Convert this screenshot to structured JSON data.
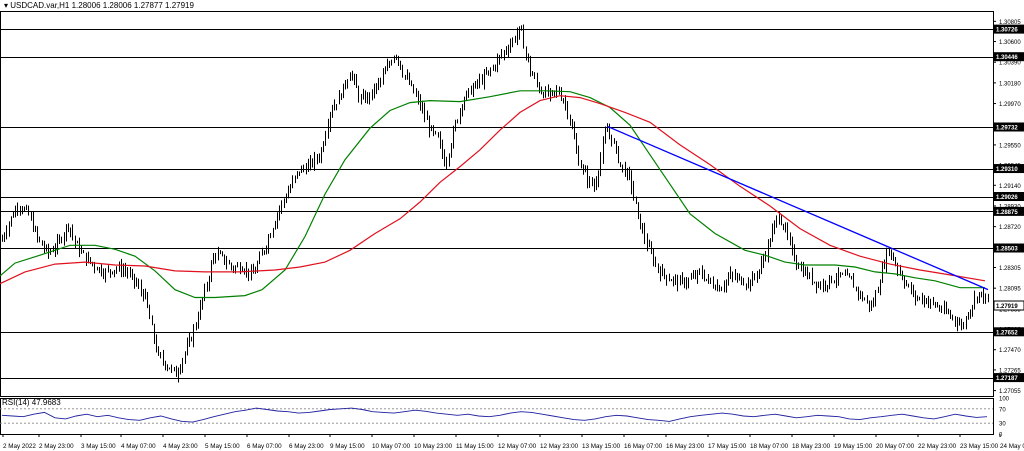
{
  "chart_data": {
    "type": "candlestick",
    "symbol": "USDCAD.var,H1",
    "header_values": [
      "1.28006",
      "1.28006",
      "1.27877",
      "1.27919"
    ],
    "price_axis": {
      "ylim": [
        1.27,
        1.3091
      ],
      "ticks": [
        "1.30805",
        "1.30600",
        "1.30390",
        "1.30180",
        "1.29970",
        "1.29755",
        "1.29550",
        "1.29345",
        "1.29140",
        "1.28930",
        "1.28720",
        "1.28510",
        "1.28305",
        "1.28095",
        "1.27885",
        "1.27680",
        "1.27470",
        "1.27265",
        "1.27055"
      ]
    },
    "levels": [
      1.30726,
      1.30446,
      1.29732,
      1.2931,
      1.29026,
      1.28875,
      1.28503,
      1.27919,
      1.27652,
      1.27187
    ],
    "level_labels": [
      "1.30726",
      "1.30446",
      "1.29732",
      "1.29310",
      "1.29026",
      "1.28875",
      "1.28503",
      "1.27919",
      "1.27652",
      "1.27187"
    ],
    "current_price": 1.27919,
    "current_label": "1.27919",
    "trendline": {
      "from": [
        "13 May 23:00",
        1.2974
      ],
      "to": [
        "24 May 07:00",
        1.2808
      ],
      "color": "#0000ff"
    },
    "time_labels": [
      "2 May 2022",
      "2 May 23:00",
      "3 May 15:00",
      "4 May 07:00",
      "4 May 23:00",
      "5 May 15:00",
      "6 May 07:00",
      "6 May 23:00",
      "9 May 15:00",
      "10 May 07:00",
      "10 May 23:00",
      "11 May 15:00",
      "12 May 07:00",
      "12 May 23:00",
      "13 May 15:00",
      "16 May 07:00",
      "16 May 23:00",
      "17 May 15:00",
      "18 May 07:00",
      "18 May 23:00",
      "19 May 15:00",
      "20 May 07:00",
      "22 May 23:00",
      "23 May 15:00",
      "24 May 07:00"
    ],
    "series": [
      {
        "name": "MA fast",
        "color": "#008000",
        "points": [
          [
            0,
            1.2822
          ],
          [
            15,
            1.2835
          ],
          [
            40,
            1.2843
          ],
          [
            70,
            1.2853
          ],
          [
            95,
            1.2853
          ],
          [
            115,
            1.2849
          ],
          [
            135,
            1.2842
          ],
          [
            155,
            1.2827
          ],
          [
            175,
            1.2808
          ],
          [
            195,
            1.28
          ],
          [
            215,
            1.28
          ],
          [
            245,
            1.2802
          ],
          [
            262,
            1.2808
          ],
          [
            285,
            1.2828
          ],
          [
            305,
            1.2862
          ],
          [
            325,
            1.2905
          ],
          [
            345,
            1.294
          ],
          [
            370,
            1.2972
          ],
          [
            390,
            1.299
          ],
          [
            410,
            1.2998
          ],
          [
            430,
            1.3
          ],
          [
            460,
            1.2999
          ],
          [
            490,
            1.3004
          ],
          [
            520,
            1.301
          ],
          [
            545,
            1.301
          ],
          [
            570,
            1.3009
          ],
          [
            590,
            1.3003
          ],
          [
            610,
            1.2993
          ],
          [
            630,
            1.2975
          ],
          [
            650,
            1.2945
          ],
          [
            670,
            1.2915
          ],
          [
            690,
            1.2885
          ],
          [
            715,
            1.2865
          ],
          [
            745,
            1.2848
          ],
          [
            765,
            1.2843
          ],
          [
            785,
            1.2836
          ],
          [
            805,
            1.2833
          ],
          [
            835,
            1.2833
          ],
          [
            855,
            1.2831
          ],
          [
            875,
            1.2826
          ],
          [
            895,
            1.2824
          ],
          [
            915,
            1.282
          ],
          [
            935,
            1.2817
          ],
          [
            960,
            1.281
          ],
          [
            985,
            1.281
          ]
        ]
      },
      {
        "name": "MA slow",
        "color": "#e0101e",
        "points": [
          [
            0,
            1.2814
          ],
          [
            25,
            1.2826
          ],
          [
            55,
            1.2834
          ],
          [
            85,
            1.2836
          ],
          [
            115,
            1.2833
          ],
          [
            145,
            1.2832
          ],
          [
            175,
            1.2827
          ],
          [
            205,
            1.2826
          ],
          [
            240,
            1.2826
          ],
          [
            275,
            1.2828
          ],
          [
            300,
            1.2831
          ],
          [
            325,
            1.2836
          ],
          [
            350,
            1.2848
          ],
          [
            375,
            1.2865
          ],
          [
            400,
            1.288
          ],
          [
            420,
            1.2897
          ],
          [
            440,
            1.2917
          ],
          [
            460,
            1.2933
          ],
          [
            480,
            1.295
          ],
          [
            500,
            1.297
          ],
          [
            520,
            1.2988
          ],
          [
            540,
            1.3
          ],
          [
            560,
            1.3005
          ],
          [
            580,
            1.3003
          ],
          [
            600,
            1.2997
          ],
          [
            625,
            1.2988
          ],
          [
            650,
            1.2978
          ],
          [
            680,
            1.2955
          ],
          [
            710,
            1.2935
          ],
          [
            740,
            1.2913
          ],
          [
            770,
            1.2893
          ],
          [
            800,
            1.287
          ],
          [
            830,
            1.2853
          ],
          [
            860,
            1.2842
          ],
          [
            890,
            1.2834
          ],
          [
            920,
            1.2828
          ],
          [
            950,
            1.2823
          ],
          [
            985,
            1.2817
          ]
        ]
      }
    ],
    "price_path": [
      [
        0,
        1.2855
      ],
      [
        8,
        1.2875
      ],
      [
        18,
        1.2895
      ],
      [
        28,
        1.2885
      ],
      [
        38,
        1.2858
      ],
      [
        48,
        1.2845
      ],
      [
        58,
        1.2855
      ],
      [
        68,
        1.2875
      ],
      [
        75,
        1.2855
      ],
      [
        85,
        1.284
      ],
      [
        95,
        1.2832
      ],
      [
        105,
        1.2825
      ],
      [
        115,
        1.283
      ],
      [
        125,
        1.2828
      ],
      [
        135,
        1.2815
      ],
      [
        145,
        1.28
      ],
      [
        150,
        1.2775
      ],
      [
        158,
        1.274
      ],
      [
        168,
        1.273
      ],
      [
        176,
        1.2722
      ],
      [
        183,
        1.274
      ],
      [
        192,
        1.2762
      ],
      [
        200,
        1.279
      ],
      [
        207,
        1.2815
      ],
      [
        214,
        1.2845
      ],
      [
        222,
        1.284
      ],
      [
        232,
        1.283
      ],
      [
        242,
        1.2832
      ],
      [
        252,
        1.2822
      ],
      [
        260,
        1.284
      ],
      [
        268,
        1.286
      ],
      [
        278,
        1.2888
      ],
      [
        288,
        1.2908
      ],
      [
        298,
        1.2928
      ],
      [
        310,
        1.2935
      ],
      [
        320,
        1.2945
      ],
      [
        330,
        1.299
      ],
      [
        340,
        1.3005
      ],
      [
        350,
        1.303
      ],
      [
        360,
        1.3
      ],
      [
        370,
        1.3005
      ],
      [
        380,
        1.302
      ],
      [
        388,
        1.3035
      ],
      [
        395,
        1.305
      ],
      [
        402,
        1.303
      ],
      [
        410,
        1.3015
      ],
      [
        420,
        1.2995
      ],
      [
        430,
        1.297
      ],
      [
        438,
        1.296
      ],
      [
        445,
        1.2935
      ],
      [
        455,
        1.2975
      ],
      [
        462,
        1.3
      ],
      [
        470,
        1.301
      ],
      [
        480,
        1.302
      ],
      [
        490,
        1.303
      ],
      [
        500,
        1.3045
      ],
      [
        508,
        1.3055
      ],
      [
        515,
        1.3065
      ],
      [
        520,
        1.3073
      ],
      [
        525,
        1.305
      ],
      [
        530,
        1.303
      ],
      [
        540,
        1.301
      ],
      [
        550,
        1.3005
      ],
      [
        558,
        1.301
      ],
      [
        566,
        1.2995
      ],
      [
        572,
        1.297
      ],
      [
        578,
        1.294
      ],
      [
        586,
        1.2922
      ],
      [
        594,
        1.2912
      ],
      [
        600,
        1.294
      ],
      [
        606,
        1.2972
      ],
      [
        612,
        1.296
      ],
      [
        620,
        1.2935
      ],
      [
        630,
        1.292
      ],
      [
        638,
        1.288
      ],
      [
        648,
        1.285
      ],
      [
        658,
        1.2828
      ],
      [
        668,
        1.282
      ],
      [
        680,
        1.2815
      ],
      [
        690,
        1.2818
      ],
      [
        700,
        1.2825
      ],
      [
        710,
        1.2815
      ],
      [
        720,
        1.281
      ],
      [
        730,
        1.2822
      ],
      [
        740,
        1.2818
      ],
      [
        750,
        1.2815
      ],
      [
        760,
        1.283
      ],
      [
        770,
        1.286
      ],
      [
        778,
        1.2885
      ],
      [
        785,
        1.2868
      ],
      [
        792,
        1.2845
      ],
      [
        800,
        1.283
      ],
      [
        810,
        1.282
      ],
      [
        820,
        1.2812
      ],
      [
        830,
        1.2818
      ],
      [
        840,
        1.2822
      ],
      [
        850,
        1.2818
      ],
      [
        860,
        1.2802
      ],
      [
        872,
        1.279
      ],
      [
        882,
        1.2828
      ],
      [
        888,
        1.285
      ],
      [
        895,
        1.2835
      ],
      [
        905,
        1.2815
      ],
      [
        915,
        1.28
      ],
      [
        925,
        1.2798
      ],
      [
        935,
        1.2792
      ],
      [
        945,
        1.2785
      ],
      [
        955,
        1.2778
      ],
      [
        962,
        1.277
      ],
      [
        970,
        1.279
      ],
      [
        978,
        1.2805
      ],
      [
        985,
        1.28
      ],
      [
        989,
        1.2792
      ]
    ],
    "rsi": {
      "title": "RSI(14) 47.9683",
      "levels": [
        30,
        70
      ],
      "ticks": [
        "100",
        "70",
        "30",
        "0"
      ],
      "color": "#1f1fa0",
      "values": [
        52,
        50,
        48,
        55,
        60,
        45,
        42,
        50,
        55,
        48,
        52,
        45,
        40,
        38,
        45,
        50,
        42,
        35,
        33,
        40,
        48,
        55,
        62,
        66,
        72,
        68,
        64,
        62,
        58,
        60,
        64,
        68,
        70,
        72,
        68,
        62,
        60,
        58,
        62,
        66,
        63,
        58,
        55,
        52,
        55,
        50,
        48,
        52,
        58,
        62,
        60,
        55,
        50,
        45,
        40,
        38,
        42,
        48,
        52,
        50,
        45,
        40,
        38,
        35,
        42,
        48,
        52,
        55,
        58,
        55,
        50,
        48,
        52,
        55,
        50,
        45,
        48,
        52,
        50,
        48,
        42,
        40,
        45,
        48,
        52,
        55,
        50,
        45,
        42,
        48,
        55,
        50,
        46,
        48
      ]
    }
  }
}
